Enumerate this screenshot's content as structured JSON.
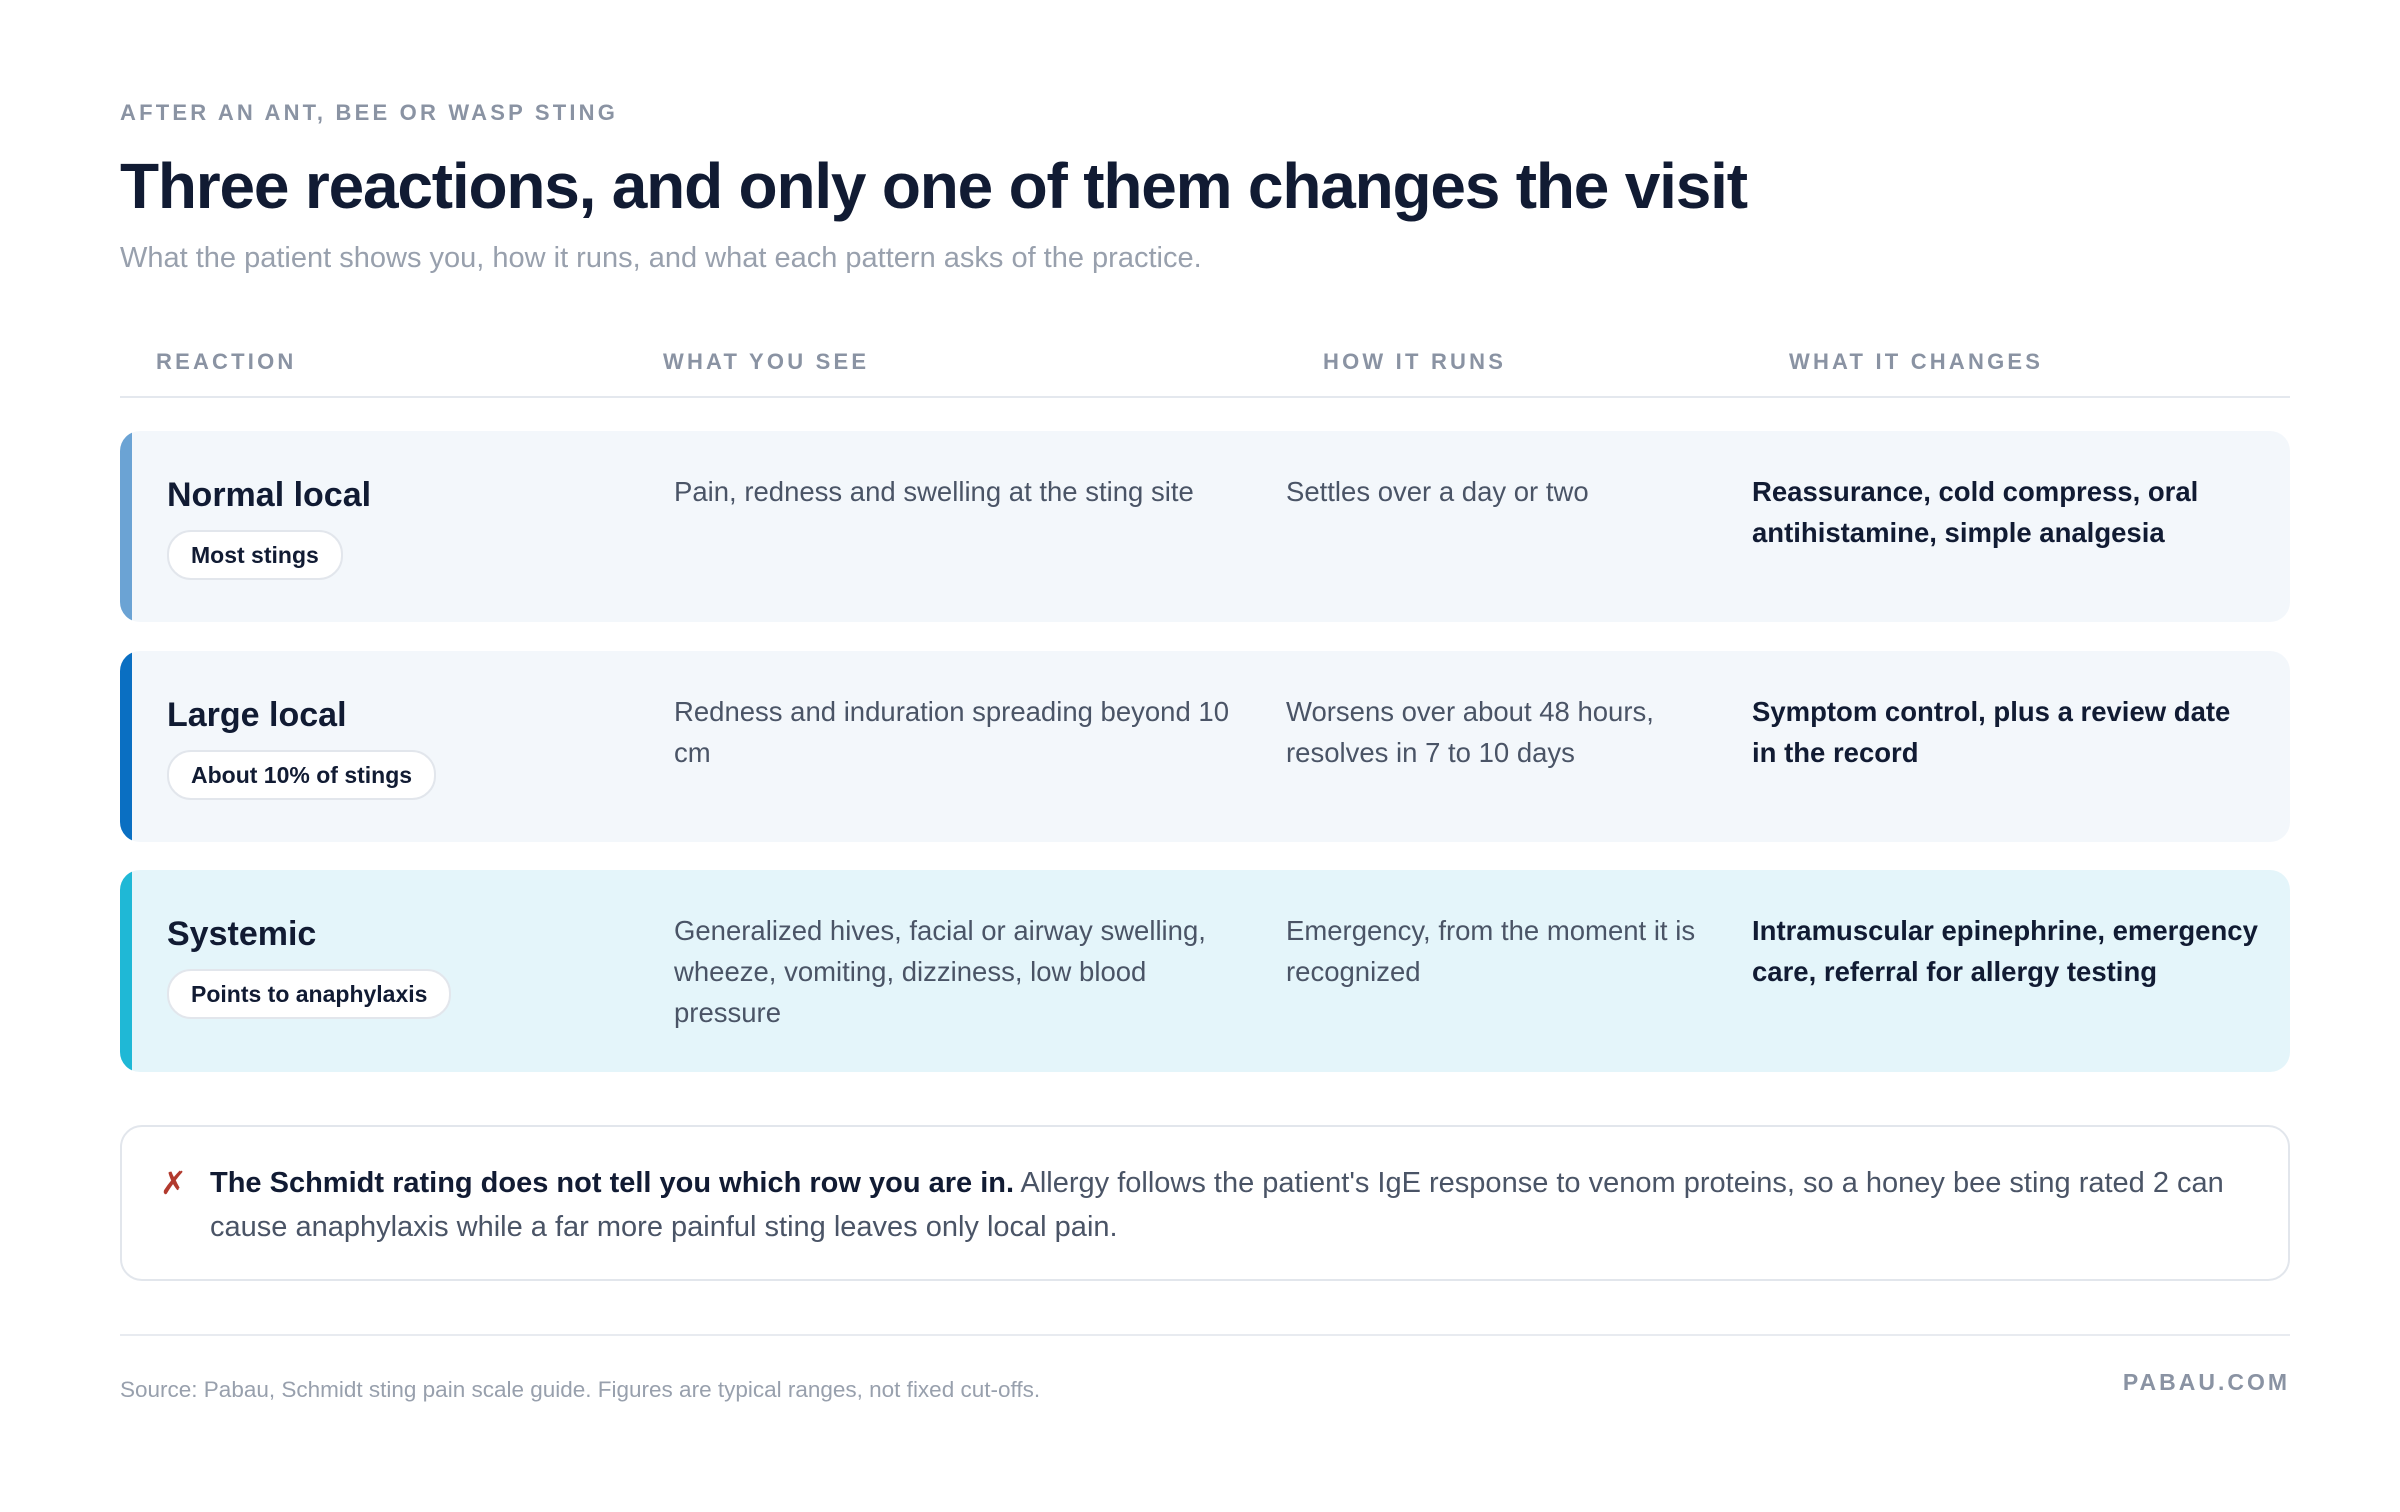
{
  "header": {
    "eyebrow": "AFTER AN ANT, BEE OR WASP STING",
    "title": "Three reactions, and only one of them changes the visit",
    "subtitle": "What the patient shows you, how it runs, and what each pattern asks of the practice."
  },
  "table": {
    "columns": [
      "REACTION",
      "WHAT YOU SEE",
      "HOW IT RUNS",
      "WHAT IT CHANGES"
    ],
    "rows": [
      {
        "name": "Normal local",
        "badge": "Most stings",
        "see": "Pain, redness and swelling at the sting site",
        "runs": "Settles over a day or two",
        "changes": "Reassurance, cold compress, oral antihistamine, simple analgesia",
        "accent_color": "#6ba3d4"
      },
      {
        "name": "Large local",
        "badge": "About 10% of stings",
        "see": "Redness and induration spreading beyond 10 cm",
        "runs": "Worsens over about 48 hours, resolves in 7 to 10 days",
        "changes": "Symptom control, plus a review date in the record",
        "accent_color": "#0a6fc2"
      },
      {
        "name": "Systemic",
        "badge": "Points to anaphylaxis",
        "see": "Generalized hives, facial or airway swelling, wheeze, vomiting, dizziness, low blood pressure",
        "runs": "Emergency, from the moment it is recognized",
        "changes": "Intramuscular epinephrine, emergency care, referral for allergy testing",
        "accent_color": "#1fb8d6"
      }
    ]
  },
  "callout": {
    "icon": "cross-mark-icon",
    "icon_glyph": "✗",
    "lead": "The Schmidt rating does not tell you which row you are in.",
    "body": "Allergy follows the patient's IgE response to venom proteins, so a honey bee sting rated 2 can cause anaphylaxis while a far more painful sting leaves only local pain."
  },
  "footer": {
    "source": "Source: Pabau, Schmidt sting pain scale guide. Figures are typical ranges, not fixed cut-offs.",
    "brand": "PABAU.COM"
  }
}
